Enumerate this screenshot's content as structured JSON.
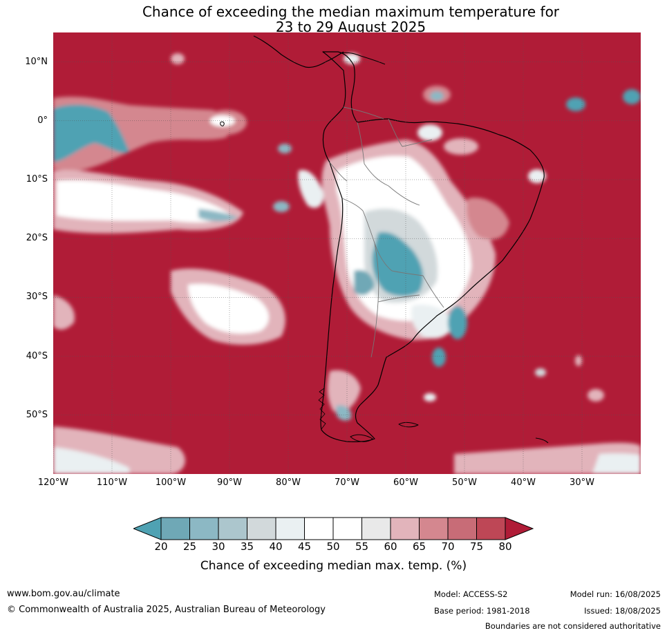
{
  "title_line1": "Chance of exceeding the median maximum temperature for",
  "title_line2": "23 to 29 August 2025",
  "map": {
    "lat_labels": [
      "10°N",
      "0°",
      "10°S",
      "20°S",
      "30°S",
      "40°S",
      "50°S"
    ],
    "lon_labels": [
      "120°W",
      "110°W",
      "100°W",
      "90°W",
      "80°W",
      "70°W",
      "60°W",
      "50°W",
      "40°W",
      "30°W"
    ],
    "lat_values": [
      10,
      0,
      -10,
      -20,
      -30,
      -40,
      -50
    ],
    "lon_values": [
      -120,
      -110,
      -100,
      -90,
      -80,
      -70,
      -60,
      -50,
      -40,
      -30
    ],
    "extent": {
      "lon_min": -120,
      "lon_max": -20,
      "lat_min": -60,
      "lat_max": 15
    },
    "background_color": "#b01c37"
  },
  "colorbar": {
    "ticks": [
      "20",
      "25",
      "30",
      "35",
      "40",
      "45",
      "50",
      "55",
      "60",
      "65",
      "70",
      "75",
      "80"
    ],
    "under_color": "#4fa2b3",
    "over_color": "#b01c37",
    "colors": [
      "#6fa8b6",
      "#8cb8c4",
      "#acc6cd",
      "#d2d9db",
      "#eaf0f2",
      "#ffffff",
      "#ffffff",
      "#e9e9e9",
      "#e2b4bb",
      "#d4878f",
      "#c86c77",
      "#be4756"
    ],
    "label": "Chance of exceeding median max. temp. (%)"
  },
  "footer": {
    "website": "www.bom.gov.au/climate",
    "copyright": "© Commonwealth of Australia 2025, Australian Bureau of Meteorology",
    "model": "Model: ACCESS-S2",
    "base_period": "Base period: 1981-2018",
    "model_run": "Model run: 16/08/2025",
    "issued": "Issued: 18/08/2025",
    "disclaimer": "Boundaries are not considered authoritative"
  }
}
